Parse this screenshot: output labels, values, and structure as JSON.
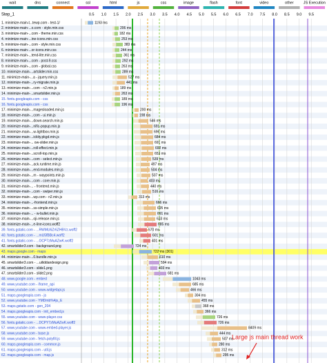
{
  "legend": [
    "wait",
    "dns",
    "connect",
    "ssl",
    "html",
    "js",
    "css",
    "image",
    "flash",
    "font",
    "video",
    "other",
    "JS Execution"
  ],
  "step": "Step_1",
  "axis_ticks": [
    "0.5",
    "1.0",
    "1.5",
    "2.0",
    "2.5",
    "3.0",
    "3.5",
    "4.0",
    "4.5",
    "5.0",
    "5.5",
    "6.0",
    "6.5",
    "7.0",
    "7.5",
    "8.0",
    "8.5",
    "9.0",
    "9.5"
  ],
  "rows": [
    {
      "label": "1. minimize-main-t...tewp.com - test-1/",
      "time": "1193 ms"
    },
    {
      "label": "2. minimize-main-...o.com - style.min.css",
      "time": "206 ms"
    },
    {
      "label": "3. minimize-main-...com - theme.min.css",
      "time": "182 ms"
    },
    {
      "label": "4. minimize-main-...ine-icons.min.css",
      "time": "253 ms"
    },
    {
      "label": "5. minimize-main-...com - style.min.css",
      "time": "383 ms"
    },
    {
      "label": "6. minimize-main-...or-icons.min.css",
      "time": "244 ms"
    },
    {
      "label": "7. minimize-main-...tend-lite.min.css",
      "time": "361 ms"
    },
    {
      "label": "8. minimize-main-...com - post-9.css",
      "time": "292 ms"
    },
    {
      "label": "9. minimize-main-...com - global.css",
      "time": "263 ms"
    },
    {
      "label": "10. minimize-main-...artslider.min.css",
      "time": "289 ms"
    },
    {
      "label": "11. minimize-main-...a - jquery.min.js",
      "time": "527 ms"
    },
    {
      "label": "12. minimize-main-...ry-migrate.min.js",
      "time": "441 ms"
    },
    {
      "label": "13. minimize-main-...com - n2.min.js",
      "time": "189 ms"
    },
    {
      "label": "14. minimize-main-...smartslider.min.js",
      "time": "263 ms"
    },
    {
      "label": "15. fonts.googleapis.com - css",
      "time": "189 ms"
    },
    {
      "label": "16. fonts.googleapis.com - css",
      "time": "196 ms"
    },
    {
      "label": "17. minimize-main-...magesloaded.min.js",
      "time": "200 ms"
    },
    {
      "label": "18. minimize-main-...com - ui.min.js",
      "time": "198 ms"
    },
    {
      "label": "19. minimize-main-...down-search.min.js",
      "time": "546 ms"
    },
    {
      "label": "20. minimize-main-...nific-popup.min.js",
      "time": "691 ms"
    },
    {
      "label": "21. minimize-main-...w-lightbox.min.js",
      "time": "696 ms"
    },
    {
      "label": "22. minimize-main-...ickity.pkgd.min.js",
      "time": "684 ms"
    },
    {
      "label": "23. minimize-main-... ow-slider.min.js",
      "time": "691 ms"
    },
    {
      "label": "24. minimize-main-...roll-effect.min.js",
      "time": "692 ms"
    },
    {
      "label": "25. minimize-main-...scroll-top.min.js",
      "time": "653 ms"
    },
    {
      "label": "26. minimize-main-...com - select.min.js",
      "time": "539 ms"
    },
    {
      "label": "27. minimize-main-...ack.runtime.min.js",
      "time": "497 ms"
    },
    {
      "label": "28. minimize-main-...end-modules.min.js",
      "time": "504 ms"
    },
    {
      "label": "29. minimize-main-...m - waypoints.min.js",
      "time": "507 ms"
    },
    {
      "label": "30. minimize-main-...com - core.min.js",
      "time": "403 ms"
    },
    {
      "label": "31. minimize-main-... - frontend.min.js",
      "time": "440 ms"
    },
    {
      "label": "32. minimize-main-...com - swiper.min.js",
      "time": "516 ms"
    },
    {
      "label": "33. minimize-main-...wp.com - n2.min.js",
      "time": "313 ms"
    },
    {
      "label": "34. minimize-main-...-frontend.min.js",
      "time": "666 ms"
    },
    {
      "label": "35. minimize-main-...ss-simple.min.js",
      "time": "695 ms"
    },
    {
      "label": "36. minimize-main-... - w-bullet.min.js",
      "time": "691 ms"
    },
    {
      "label": "37. minimize-main-...oji-release.min.js",
      "time": "633 ms"
    },
    {
      "label": "38. minimize-main-...e-line-icons.woff2",
      "time": "685 ms"
    },
    {
      "label": "39. fonts.gstatic.com - ...RWMU6Zr6ZHBVz.woff2",
      "time": "570 ms"
    },
    {
      "label": "40. fonts.gstatic.com - ...mU5fBBc4.woff2",
      "time": "601 ms"
    },
    {
      "label": "41. fonts.gstatic.com - ...OCP7zMuAZwK.woff2",
      "time": "401 ms"
    },
    {
      "label": "42. smartslider3.com - background.png",
      "time": "724 ms"
    },
    {
      "label": "43. maps.google.com - maps",
      "time": "722 ms (301)"
    },
    {
      "label": "44. minimize-main-...0.bundle.min.js",
      "time": "610 ms"
    },
    {
      "label": "45. smartslider3.com - ...uiliddandesign.png",
      "time": "594 ms"
    },
    {
      "label": "46. smartslider3.com - slide1.png",
      "time": "403 ms"
    },
    {
      "label": "47. smartslider3.com - slide2.png",
      "time": "681 ms"
    },
    {
      "label": "48. www.google.com - embed",
      "time": "1043 ms"
    },
    {
      "label": "49. www.youtube.com - iframe_api",
      "time": "685 ms"
    },
    {
      "label": "50. www.youtube.com - www-widgetapi.js",
      "time": "466 ms"
    },
    {
      "label": "51. maps.googleapis.com - js",
      "time": "304 ms"
    },
    {
      "label": "52. www.youtube.com - YMDmb%4js_E",
      "time": "455 ms"
    },
    {
      "label": "53. maps.gstatic.com - gen_204",
      "time": "368 ms"
    },
    {
      "label": "54. maps.googleapis.com - init_embed.js",
      "time": "366 ms"
    },
    {
      "label": "55. www.youtube.com - www-player.css",
      "time": "726 ms"
    },
    {
      "label": "56. fonts.gstatic.com - ...DCPY7zMuAZwK.woff2",
      "time": "726 ms"
    },
    {
      "label": "57. www.youtube.com - www-embed-player.js",
      "time": "8409 ms"
    },
    {
      "label": "58. www.youtube.com - base.js",
      "time": "444 ms"
    },
    {
      "label": "59. www.youtube.com - fetch-polyfill.js",
      "time": "507 ms"
    },
    {
      "label": "60. maps.googleapis.com - common.js",
      "time": "280 ms"
    },
    {
      "label": "61. maps.googleapis.com - util.js",
      "time": "312 ms"
    },
    {
      "label": "62. maps.googleapis.com - map.js",
      "time": "295 ms"
    }
  ],
  "annotation": "Large  js main thread work"
}
